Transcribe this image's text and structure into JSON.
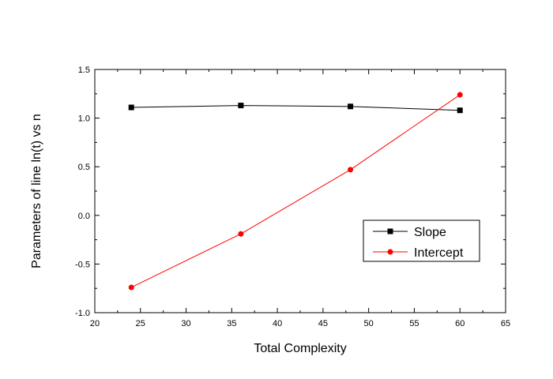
{
  "chart_data": {
    "type": "line",
    "title": "",
    "xlabel": "Total Complexity",
    "ylabel": "Parameters of line ln(t) vs n",
    "xlim": [
      20,
      65
    ],
    "ylim": [
      -1.0,
      1.5
    ],
    "x_ticks": [
      "20",
      "25",
      "30",
      "35",
      "40",
      "45",
      "50",
      "55",
      "60",
      "65"
    ],
    "y_ticks": [
      "-1.0",
      "-0.5",
      "0.0",
      "0.5",
      "1.0",
      "1.5"
    ],
    "grid": false,
    "legend_position": "right-middle",
    "x": [
      24,
      36,
      48,
      60
    ],
    "series": [
      {
        "name": "Slope",
        "values": [
          1.11,
          1.13,
          1.12,
          1.08
        ],
        "color": "#000000",
        "marker": "square"
      },
      {
        "name": "Intercept",
        "values": [
          -0.74,
          -0.19,
          0.47,
          1.24
        ],
        "color": "#ff0000",
        "marker": "circle"
      }
    ]
  }
}
